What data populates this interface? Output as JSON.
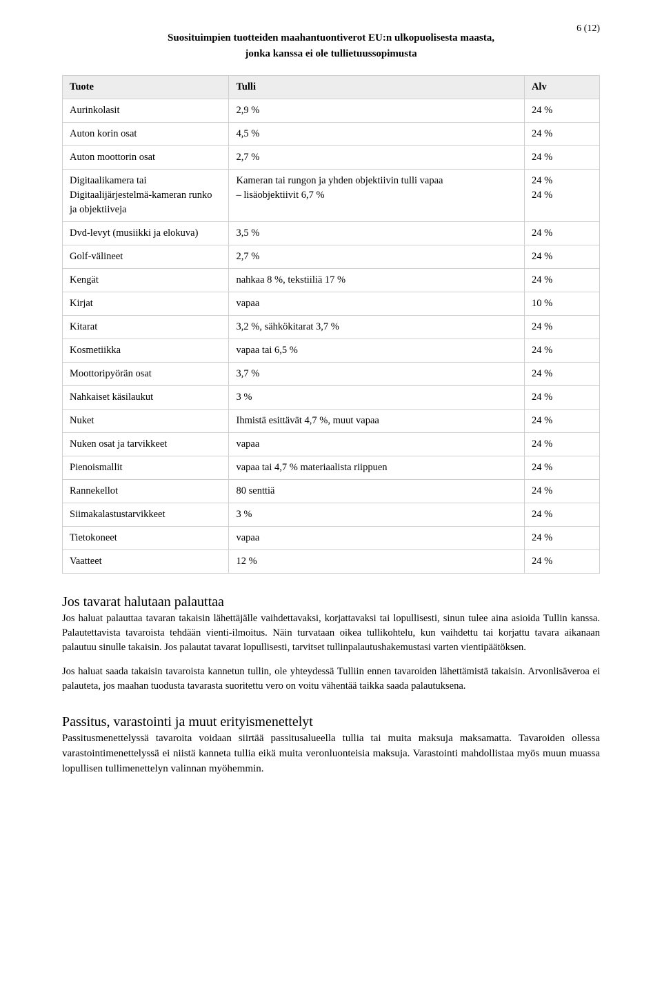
{
  "page_number": "6 (12)",
  "title_line1": "Suosituimpien tuotteiden maahantuontiverot EU:n ulkopuolisesta maasta,",
  "title_line2": "jonka kanssa ei ole tullietuussopimusta",
  "table": {
    "headers": {
      "c1": "Tuote",
      "c2": "Tulli",
      "c3": "Alv"
    },
    "rows": [
      {
        "c1": "Aurinkolasit",
        "c2": "2,9 %",
        "c3": "24 %"
      },
      {
        "c1": "Auton korin osat",
        "c2": "4,5 %",
        "c3": "24 %"
      },
      {
        "c1": "Auton moottorin osat",
        "c2": "2,7 %",
        "c3": "24 %"
      },
      {
        "c1": "Digitaalikamera tai Digitaalijärjestelmä-kameran runko ja objektiiveja",
        "c2": "Kameran tai rungon ja yhden objektiivin tulli vapaa\n– lisäobjektiivit 6,7 %",
        "c3": "24 %\n24 %"
      },
      {
        "c1": "Dvd-levyt (musiikki ja elokuva)",
        "c2": "3,5 %",
        "c3": "24 %"
      },
      {
        "c1": "Golf-välineet",
        "c2": "2,7 %",
        "c3": "24 %"
      },
      {
        "c1": "Kengät",
        "c2": "nahkaa 8 %, tekstiiliä 17 %",
        "c3": "24 %"
      },
      {
        "c1": "Kirjat",
        "c2": "vapaa",
        "c3": "10 %"
      },
      {
        "c1": "Kitarat",
        "c2": "3,2 %, sähkökitarat 3,7 %",
        "c3": "24 %"
      },
      {
        "c1": "Kosmetiikka",
        "c2": "vapaa tai 6,5 %",
        "c3": "24 %"
      },
      {
        "c1": "Moottoripyörän osat",
        "c2": "3,7 %",
        "c3": "24 %"
      },
      {
        "c1": "Nahkaiset käsilaukut",
        "c2": "3 %",
        "c3": "24 %"
      },
      {
        "c1": "Nuket",
        "c2": "Ihmistä esittävät 4,7 %, muut vapaa",
        "c3": "24 %"
      },
      {
        "c1": "Nuken osat ja tarvikkeet",
        "c2": "vapaa",
        "c3": "24 %"
      },
      {
        "c1": "Pienoismallit",
        "c2": "vapaa tai 4,7 % materiaalista riippuen",
        "c3": "24 %"
      },
      {
        "c1": "Rannekellot",
        "c2": "80 senttiä",
        "c3": "24 %"
      },
      {
        "c1": "Siimakalastustarvikkeet",
        "c2": "3 %",
        "c3": "24 %"
      },
      {
        "c1": "Tietokoneet",
        "c2": "vapaa",
        "c3": "24 %"
      },
      {
        "c1": "Vaatteet",
        "c2": "12 %",
        "c3": "24 %"
      }
    ]
  },
  "section1": {
    "heading": "Jos tavarat halutaan palauttaa",
    "p1": "Jos haluat palauttaa tavaran takaisin lähettäjälle vaihdettavaksi, korjattavaksi tai lopullisesti, sinun tulee aina asioida Tullin kanssa. Palautettavista tavaroista tehdään vienti-ilmoitus. Näin turvataan oikea tullikohtelu, kun vaihdettu tai korjattu tavara aikanaan palautuu sinulle takaisin. Jos palautat tavarat lopullisesti, tarvitset tullinpalautushakemustasi varten vientipäätöksen.",
    "p2": "Jos haluat saada takaisin tavaroista kannetun tullin, ole yhteydessä Tulliin ennen tavaroiden lähettämistä takaisin. Arvonlisäveroa ei palauteta, jos maahan tuodusta tavarasta suoritettu vero on voitu vähentää taikka saada palautuksena."
  },
  "section2": {
    "heading": "Passitus, varastointi ja muut erityismenettelyt",
    "p1": "Passitusmenettelyssä tavaroita voidaan siirtää passitusalueella tullia tai muita maksuja maksamatta. Tavaroiden ollessa varastointimenettelyssä ei niistä kanneta tullia eikä muita veronluonteisia maksuja. Varastointi mahdollistaa myös muun muassa lopullisen tullimenettelyn valinnan myöhemmin."
  }
}
